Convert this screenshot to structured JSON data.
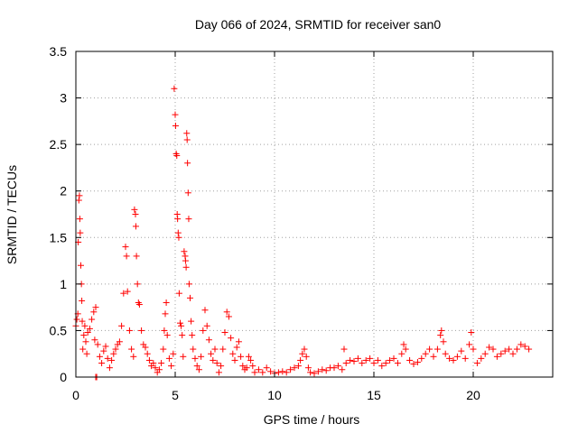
{
  "chart_data": {
    "type": "scatter",
    "title": "Day 066 of 2024, SRMTID for receiver san0",
    "xlabel": "GPS time / hours",
    "ylabel": "SRMTID / TECUs",
    "xlim": [
      0,
      24
    ],
    "ylim": [
      0,
      3.5
    ],
    "x_ticks": [
      0,
      5,
      10,
      15,
      20
    ],
    "x_tick_labels": [
      "0",
      "5",
      "10",
      "15",
      "20"
    ],
    "y_ticks": [
      0,
      0.5,
      1,
      1.5,
      2,
      2.5,
      3,
      3.5
    ],
    "y_tick_labels": [
      "0",
      "0.5",
      "1",
      "1.5",
      "2",
      "2.5",
      "3",
      "3.5"
    ],
    "grid": true,
    "marker": "+",
    "color": "#ff0000",
    "series": [
      {
        "name": "SRMTID",
        "points": [
          [
            0.0,
            0.55
          ],
          [
            0.05,
            0.62
          ],
          [
            0.1,
            0.68
          ],
          [
            0.12,
            1.45
          ],
          [
            0.15,
            1.9
          ],
          [
            0.18,
            1.95
          ],
          [
            0.2,
            1.7
          ],
          [
            0.22,
            1.55
          ],
          [
            0.25,
            1.2
          ],
          [
            0.28,
            1.0
          ],
          [
            0.3,
            0.82
          ],
          [
            0.32,
            0.6
          ],
          [
            0.35,
            0.3
          ],
          [
            0.4,
            0.45
          ],
          [
            0.45,
            0.55
          ],
          [
            0.5,
            0.38
          ],
          [
            0.55,
            0.25
          ],
          [
            0.6,
            0.48
          ],
          [
            0.7,
            0.52
          ],
          [
            0.8,
            0.62
          ],
          [
            0.9,
            0.7
          ],
          [
            1.0,
            0.75
          ],
          [
            0.95,
            0.4
          ],
          [
            1.0,
            0.0
          ],
          [
            1.05,
            0.0
          ],
          [
            1.1,
            0.35
          ],
          [
            1.2,
            0.22
          ],
          [
            1.3,
            0.15
          ],
          [
            1.4,
            0.28
          ],
          [
            1.5,
            0.33
          ],
          [
            1.6,
            0.2
          ],
          [
            1.7,
            0.1
          ],
          [
            1.8,
            0.18
          ],
          [
            1.9,
            0.25
          ],
          [
            2.0,
            0.3
          ],
          [
            2.1,
            0.35
          ],
          [
            2.2,
            0.38
          ],
          [
            2.3,
            0.55
          ],
          [
            2.4,
            0.9
          ],
          [
            2.5,
            1.4
          ],
          [
            2.55,
            1.3
          ],
          [
            2.6,
            0.92
          ],
          [
            2.7,
            0.5
          ],
          [
            2.8,
            0.3
          ],
          [
            2.9,
            0.22
          ],
          [
            2.95,
            1.8
          ],
          [
            3.0,
            1.75
          ],
          [
            3.02,
            1.62
          ],
          [
            3.05,
            1.3
          ],
          [
            3.1,
            1.0
          ],
          [
            3.15,
            0.8
          ],
          [
            3.2,
            0.78
          ],
          [
            3.3,
            0.5
          ],
          [
            3.4,
            0.35
          ],
          [
            3.5,
            0.32
          ],
          [
            3.6,
            0.25
          ],
          [
            3.7,
            0.18
          ],
          [
            3.8,
            0.12
          ],
          [
            3.9,
            0.15
          ],
          [
            4.0,
            0.1
          ],
          [
            4.1,
            0.05
          ],
          [
            4.2,
            0.08
          ],
          [
            4.3,
            0.15
          ],
          [
            4.4,
            0.3
          ],
          [
            4.45,
            0.5
          ],
          [
            4.5,
            0.68
          ],
          [
            4.55,
            0.8
          ],
          [
            4.6,
            0.45
          ],
          [
            4.7,
            0.2
          ],
          [
            4.8,
            0.12
          ],
          [
            4.9,
            0.25
          ],
          [
            4.95,
            3.1
          ],
          [
            5.0,
            2.82
          ],
          [
            5.02,
            2.7
          ],
          [
            5.05,
            2.4
          ],
          [
            5.08,
            2.38
          ],
          [
            5.1,
            1.75
          ],
          [
            5.12,
            1.7
          ],
          [
            5.15,
            1.55
          ],
          [
            5.18,
            1.5
          ],
          [
            5.2,
            0.9
          ],
          [
            5.25,
            0.58
          ],
          [
            5.3,
            0.55
          ],
          [
            5.35,
            0.45
          ],
          [
            5.4,
            0.22
          ],
          [
            5.45,
            1.35
          ],
          [
            5.5,
            1.3
          ],
          [
            5.52,
            1.25
          ],
          [
            5.55,
            1.18
          ],
          [
            5.58,
            2.62
          ],
          [
            5.6,
            2.55
          ],
          [
            5.62,
            2.3
          ],
          [
            5.65,
            1.98
          ],
          [
            5.68,
            1.7
          ],
          [
            5.7,
            1.0
          ],
          [
            5.75,
            0.85
          ],
          [
            5.8,
            0.6
          ],
          [
            5.85,
            0.45
          ],
          [
            5.9,
            0.3
          ],
          [
            6.0,
            0.2
          ],
          [
            6.1,
            0.12
          ],
          [
            6.2,
            0.08
          ],
          [
            6.3,
            0.22
          ],
          [
            6.4,
            0.5
          ],
          [
            6.5,
            0.72
          ],
          [
            6.6,
            0.55
          ],
          [
            6.7,
            0.4
          ],
          [
            6.8,
            0.25
          ],
          [
            6.9,
            0.18
          ],
          [
            7.0,
            0.3
          ],
          [
            7.1,
            0.15
          ],
          [
            7.2,
            0.05
          ],
          [
            7.3,
            0.12
          ],
          [
            7.4,
            0.3
          ],
          [
            7.5,
            0.48
          ],
          [
            7.6,
            0.7
          ],
          [
            7.7,
            0.65
          ],
          [
            7.8,
            0.42
          ],
          [
            7.9,
            0.25
          ],
          [
            8.0,
            0.18
          ],
          [
            8.1,
            0.32
          ],
          [
            8.2,
            0.38
          ],
          [
            8.3,
            0.22
          ],
          [
            8.4,
            0.12
          ],
          [
            8.5,
            0.08
          ],
          [
            8.6,
            0.1
          ],
          [
            8.7,
            0.22
          ],
          [
            8.8,
            0.18
          ],
          [
            8.9,
            0.12
          ],
          [
            9.0,
            0.05
          ],
          [
            9.2,
            0.08
          ],
          [
            9.4,
            0.05
          ],
          [
            9.6,
            0.1
          ],
          [
            9.8,
            0.06
          ],
          [
            10.0,
            0.04
          ],
          [
            10.2,
            0.05
          ],
          [
            10.4,
            0.06
          ],
          [
            10.6,
            0.05
          ],
          [
            10.8,
            0.08
          ],
          [
            11.0,
            0.1
          ],
          [
            11.2,
            0.12
          ],
          [
            11.3,
            0.18
          ],
          [
            11.4,
            0.25
          ],
          [
            11.5,
            0.3
          ],
          [
            11.6,
            0.22
          ],
          [
            11.7,
            0.1
          ],
          [
            11.8,
            0.05
          ],
          [
            12.0,
            0.04
          ],
          [
            12.2,
            0.06
          ],
          [
            12.4,
            0.08
          ],
          [
            12.6,
            0.07
          ],
          [
            12.8,
            0.1
          ],
          [
            13.0,
            0.1
          ],
          [
            13.2,
            0.12
          ],
          [
            13.4,
            0.08
          ],
          [
            13.5,
            0.3
          ],
          [
            13.6,
            0.15
          ],
          [
            13.8,
            0.18
          ],
          [
            14.0,
            0.17
          ],
          [
            14.2,
            0.2
          ],
          [
            14.4,
            0.15
          ],
          [
            14.6,
            0.18
          ],
          [
            14.8,
            0.2
          ],
          [
            15.0,
            0.15
          ],
          [
            15.2,
            0.18
          ],
          [
            15.4,
            0.12
          ],
          [
            15.6,
            0.15
          ],
          [
            15.8,
            0.18
          ],
          [
            16.0,
            0.2
          ],
          [
            16.2,
            0.15
          ],
          [
            16.4,
            0.25
          ],
          [
            16.5,
            0.35
          ],
          [
            16.6,
            0.3
          ],
          [
            16.8,
            0.18
          ],
          [
            17.0,
            0.14
          ],
          [
            17.2,
            0.16
          ],
          [
            17.4,
            0.2
          ],
          [
            17.6,
            0.25
          ],
          [
            17.8,
            0.3
          ],
          [
            18.0,
            0.22
          ],
          [
            18.2,
            0.3
          ],
          [
            18.35,
            0.45
          ],
          [
            18.4,
            0.5
          ],
          [
            18.5,
            0.38
          ],
          [
            18.6,
            0.25
          ],
          [
            18.8,
            0.2
          ],
          [
            19.0,
            0.18
          ],
          [
            19.2,
            0.22
          ],
          [
            19.4,
            0.28
          ],
          [
            19.6,
            0.2
          ],
          [
            19.8,
            0.35
          ],
          [
            19.9,
            0.48
          ],
          [
            20.0,
            0.3
          ],
          [
            20.2,
            0.15
          ],
          [
            20.4,
            0.2
          ],
          [
            20.6,
            0.25
          ],
          [
            20.8,
            0.32
          ],
          [
            21.0,
            0.3
          ],
          [
            21.2,
            0.22
          ],
          [
            21.4,
            0.25
          ],
          [
            21.6,
            0.28
          ],
          [
            21.8,
            0.3
          ],
          [
            22.0,
            0.25
          ],
          [
            22.2,
            0.3
          ],
          [
            22.4,
            0.35
          ],
          [
            22.6,
            0.33
          ],
          [
            22.8,
            0.3
          ]
        ]
      }
    ]
  }
}
